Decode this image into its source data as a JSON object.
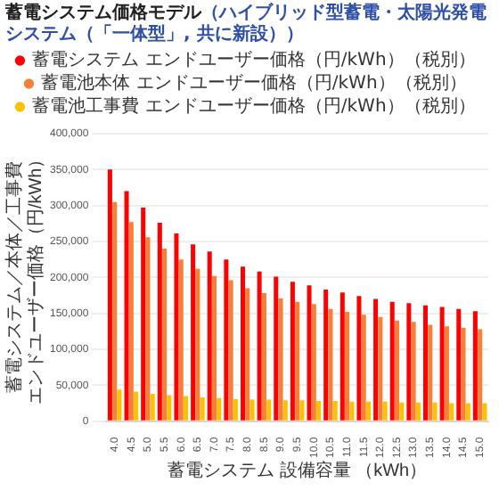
{
  "chart_data": {
    "type": "bar",
    "title": "蓄電システム価格モデル",
    "subtitle": "（ハイブリッド型蓄電・太陽光発電システム（「一体型」, 共に新設））",
    "xlabel": "蓄電システム 設備容量 （kWh）",
    "ylabel": "蓄電システム／本体／工事費エンドユーザー価格（円/kWh）",
    "categories": [
      "4.0",
      "4.5",
      "5.0",
      "5.5",
      "6.0",
      "6.5",
      "7.0",
      "7.5",
      "8.0",
      "8.5",
      "9.0",
      "9.5",
      "10.0",
      "10.5",
      "11.0",
      "11.5",
      "12.0",
      "12.5",
      "13.0",
      "13.5",
      "14.0",
      "14.5",
      "15.0"
    ],
    "series": [
      {
        "name": "蓄電システム エンドユーザー価格（円/kWh）（税別）",
        "color": "#ff0000",
        "values": [
          350000,
          320000,
          297000,
          276000,
          261000,
          246000,
          236000,
          225000,
          215000,
          208000,
          201000,
          194000,
          189000,
          183000,
          179000,
          174000,
          170000,
          166000,
          164000,
          161000,
          159000,
          156000,
          153000
        ]
      },
      {
        "name": "蓄電池本体 エンドユーザー価格（円/kWh）（税別）",
        "color": "#f4803a",
        "values": [
          305000,
          277000,
          256000,
          240000,
          225000,
          212000,
          202000,
          196000,
          185000,
          178000,
          171000,
          166000,
          163000,
          156000,
          152000,
          148000,
          145000,
          140000,
          138000,
          134000,
          132000,
          130000,
          128000
        ]
      },
      {
        "name": "蓄電池工事費 エンドユーザー価格（円/kWh）（税別）",
        "color": "#ffc000",
        "values": [
          44000,
          41000,
          38000,
          36000,
          35000,
          33000,
          32000,
          31000,
          30000,
          30000,
          29000,
          29000,
          28000,
          28000,
          27000,
          27000,
          27000,
          26000,
          26000,
          26000,
          25000,
          25000,
          25000
        ]
      }
    ],
    "ylim": [
      0,
      400000
    ],
    "yticks": [
      {
        "value": 0,
        "label": "0"
      },
      {
        "value": 50000,
        "label": "50,000"
      },
      {
        "value": 100000,
        "label": "100,000"
      },
      {
        "value": 150000,
        "label": "150,000"
      },
      {
        "value": 200000,
        "label": "200,000"
      },
      {
        "value": 250000,
        "label": "250,000"
      },
      {
        "value": 300000,
        "label": "300,000"
      },
      {
        "value": 350000,
        "label": "350,000"
      },
      {
        "value": 400000,
        "label": "400,000"
      }
    ],
    "grid": "y",
    "legend": "top"
  }
}
